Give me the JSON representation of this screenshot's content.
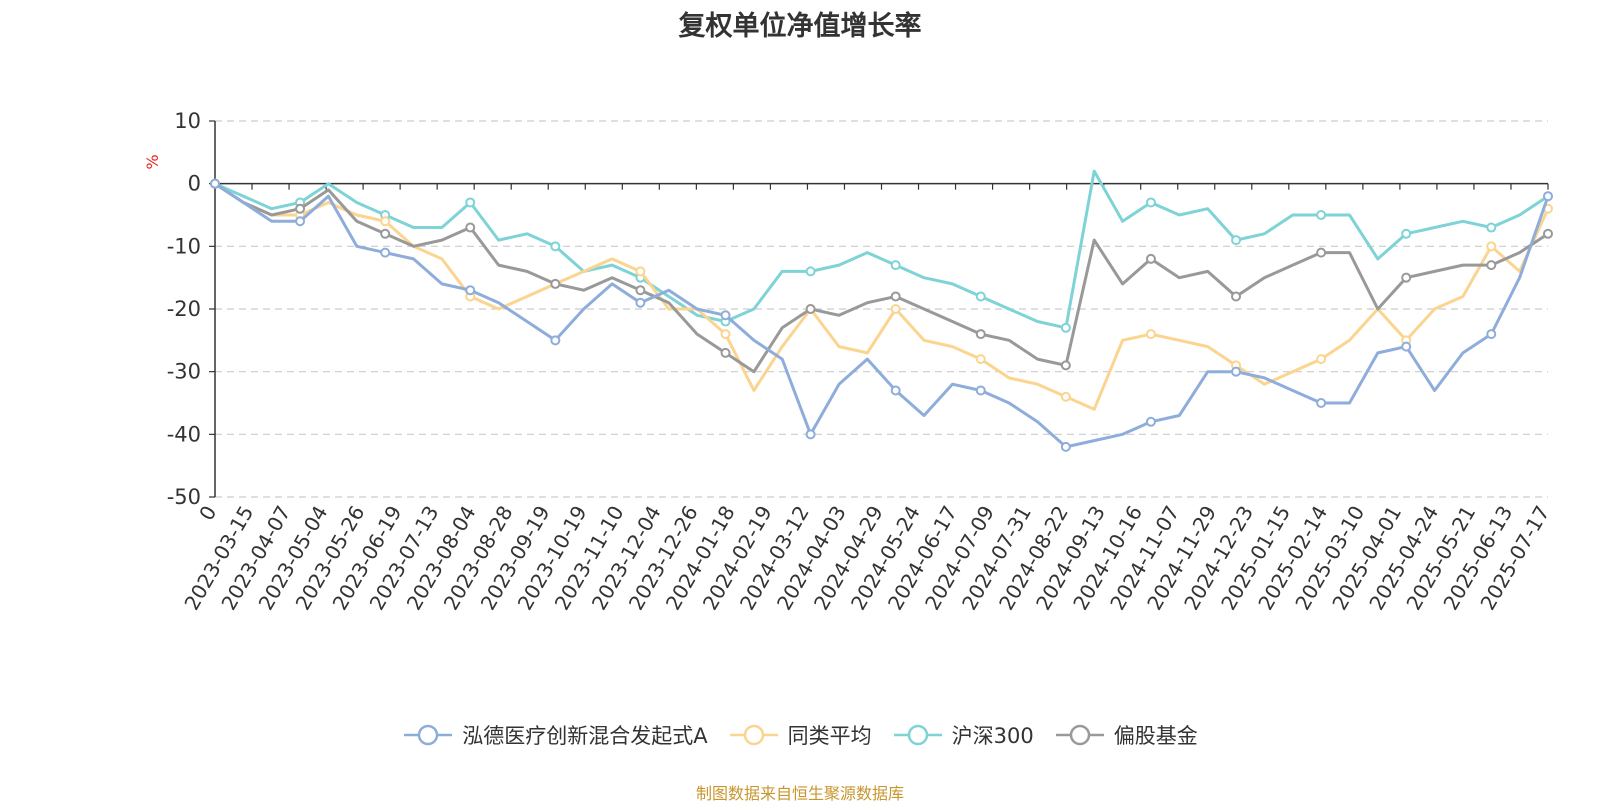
{
  "chart_data": {
    "type": "line",
    "title": "复权单位净值增长率",
    "ylabel": "%",
    "ylim": [
      -50,
      10
    ],
    "yticks": [
      10,
      0,
      -10,
      -20,
      -30,
      -40,
      -50
    ],
    "x_ticks": [
      "0",
      "2023-03-15",
      "2023-04-07",
      "2023-05-04",
      "2023-05-26",
      "2023-06-19",
      "2023-07-13",
      "2023-08-04",
      "2023-08-28",
      "2023-09-19",
      "2023-10-19",
      "2023-11-10",
      "2023-12-04",
      "2023-12-26",
      "2024-01-18",
      "2024-02-19",
      "2024-03-12",
      "2024-04-03",
      "2024-04-29",
      "2024-05-24",
      "2024-06-17",
      "2024-07-09",
      "2024-07-31",
      "2024-08-22",
      "2024-09-13",
      "2024-10-16",
      "2024-11-07",
      "2024-11-29",
      "2024-12-23",
      "2025-01-15",
      "2025-02-14",
      "2025-03-10",
      "2025-04-01",
      "2025-04-24",
      "2025-05-21",
      "2025-06-13",
      "2025-07-17"
    ],
    "grid": true,
    "legend_position": "bottom",
    "series": [
      {
        "name": "泓德医疗创新混合发起式A",
        "color": "#8eaddb",
        "values": [
          0,
          -3,
          -6,
          -6,
          -2,
          -10,
          -11,
          -12,
          -16,
          -17,
          -19,
          -22,
          -25,
          -20,
          -16,
          -19,
          -17,
          -20,
          -21,
          -25,
          -28,
          -40,
          -32,
          -28,
          -33,
          -37,
          -32,
          -33,
          -35,
          -38,
          -42,
          -41,
          -40,
          -38,
          -37,
          -30,
          -30,
          -31,
          -33,
          -35,
          -35,
          -27,
          -26,
          -33,
          -27,
          -24,
          -15,
          -2
        ]
      },
      {
        "name": "同类平均",
        "color": "#fbd490",
        "values": [
          0,
          -3,
          -5,
          -5,
          -3,
          -5,
          -6,
          -10,
          -12,
          -18,
          -20,
          -18,
          -16,
          -14,
          -12,
          -14,
          -20,
          -20,
          -24,
          -33,
          -26,
          -20,
          -26,
          -27,
          -20,
          -25,
          -26,
          -28,
          -31,
          -32,
          -34,
          -36,
          -25,
          -24,
          -25,
          -26,
          -29,
          -32,
          -30,
          -28,
          -25,
          -20,
          -25,
          -20,
          -18,
          -10,
          -14,
          -4
        ]
      },
      {
        "name": "沪深300",
        "color": "#7ed3d6",
        "values": [
          0,
          -2,
          -4,
          -3,
          0,
          -3,
          -5,
          -7,
          -7,
          -3,
          -9,
          -8,
          -10,
          -14,
          -13,
          -15,
          -18,
          -21,
          -22,
          -20,
          -14,
          -14,
          -13,
          -11,
          -13,
          -15,
          -16,
          -18,
          -20,
          -22,
          -23,
          2,
          -6,
          -3,
          -5,
          -4,
          -9,
          -8,
          -5,
          -5,
          -5,
          -12,
          -8,
          -7,
          -6,
          -7,
          -5,
          -2
        ]
      },
      {
        "name": "偏股基金",
        "color": "#999999",
        "values": [
          0,
          -3,
          -5,
          -4,
          -1,
          -6,
          -8,
          -10,
          -9,
          -7,
          -13,
          -14,
          -16,
          -17,
          -15,
          -17,
          -19,
          -24,
          -27,
          -30,
          -23,
          -20,
          -21,
          -19,
          -18,
          -20,
          -22,
          -24,
          -25,
          -28,
          -29,
          -9,
          -16,
          -12,
          -15,
          -14,
          -18,
          -15,
          -13,
          -11,
          -11,
          -20,
          -15,
          -14,
          -13,
          -13,
          -11,
          -8
        ]
      }
    ]
  },
  "source_note": "制图数据来自恒生聚源数据库"
}
